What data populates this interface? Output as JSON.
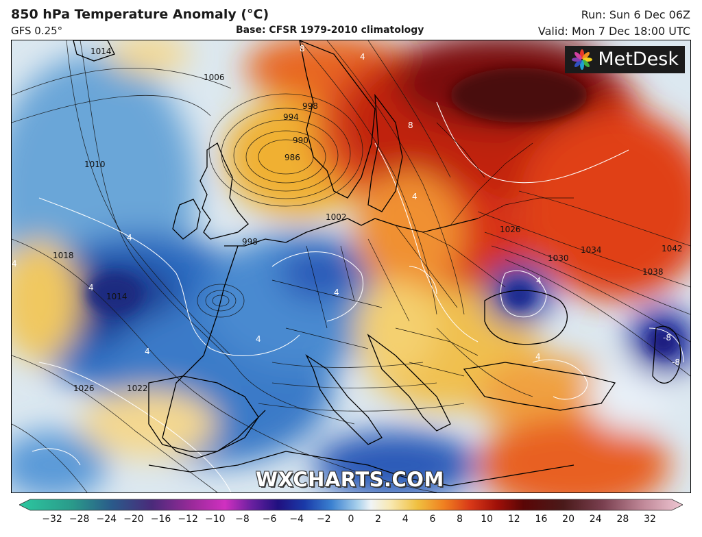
{
  "header": {
    "title": "850 hPa Temperature Anomaly (°C)",
    "model": "GFS 0.25°",
    "base": "Base: CFSR 1979-2010 climatology",
    "run": "Run: Sun 6 Dec 06Z",
    "valid": "Valid: Mon 7 Dec 18:00 UTC"
  },
  "logo": {
    "text": "MetDesk",
    "icon": "metdesk-flower-logo"
  },
  "watermark": "WXCHARTS.COM",
  "isobar_labels": [
    "1014",
    "1006",
    "998",
    "994",
    "990",
    "986",
    "1010",
    "1018",
    "1014",
    "1002",
    "1026",
    "1022",
    "1026",
    "1030",
    "1034",
    "1038",
    "1042",
    "998"
  ],
  "anomaly_labels": [
    "8",
    "4",
    "8",
    "4",
    "4",
    "4",
    "4",
    "4",
    "4",
    "4",
    "4",
    "4",
    "-8",
    "-8"
  ],
  "colorbar": {
    "ticks": [
      "−32",
      "−28",
      "−24",
      "−20",
      "−16",
      "−12",
      "−10",
      "−8",
      "−6",
      "−4",
      "−2",
      "0",
      "2",
      "4",
      "6",
      "8",
      "10",
      "12",
      "16",
      "20",
      "24",
      "28",
      "32"
    ],
    "colors": [
      "#1fa38a",
      "#1f8a8a",
      "#2a5a8a",
      "#4a2a8a",
      "#7a2a9a",
      "#b02ab0",
      "#6a2aa0",
      "#3a1a90",
      "#1a2a9a",
      "#2a6ac8",
      "#7ab0e0",
      "#e0eef8",
      "#f8f0d0",
      "#f0c860",
      "#f09030",
      "#e05020",
      "#c02010",
      "#8a1008",
      "#5a0808",
      "#6a2a2a",
      "#8a4a5a",
      "#b07a8a",
      "#e0b0c0"
    ]
  },
  "colors": {
    "warm": "#d83818",
    "cold": "#1a4aa8",
    "neutral": "#e8f0f4"
  }
}
